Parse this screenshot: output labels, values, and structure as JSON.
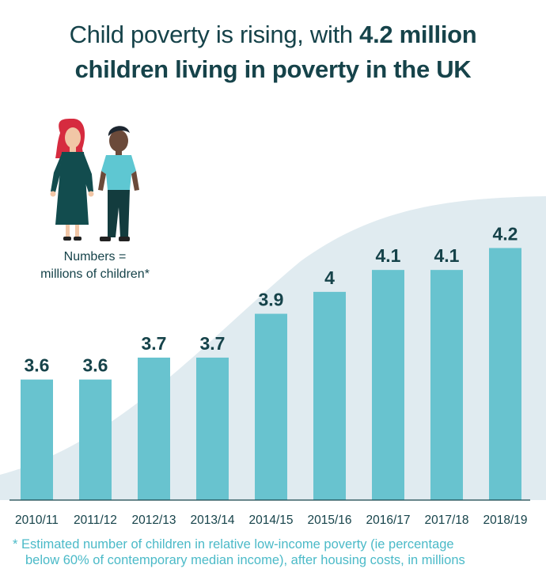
{
  "header": {
    "title_line1_prefix": "Child poverty is rising, with ",
    "title_line1_bold": "4.2 million",
    "title_line2_bold": "children living in poverty in the UK"
  },
  "legend": {
    "line1": "Numbers =",
    "line2": "millions of children*"
  },
  "footnote": {
    "line1": "* Estimated number of children in relative low-income poverty (ie percentage",
    "line2": "below 60% of contemporary median income), after housing costs, in millions"
  },
  "colors": {
    "bar": "#68c3cf",
    "background_area": "#e0ebf0",
    "text_dark": "#16434a",
    "footnote": "#4bbac8",
    "axis": "#16434a"
  },
  "chart_data": {
    "type": "bar",
    "title": "Child poverty is rising, with 4.2 million children living in poverty in the UK",
    "xlabel": "",
    "ylabel": "Millions of children",
    "categories": [
      "2010/11",
      "2011/12",
      "2012/13",
      "2013/14",
      "2014/15",
      "2015/16",
      "2016/17",
      "2017/18",
      "2018/19"
    ],
    "values": [
      3.6,
      3.6,
      3.7,
      3.7,
      3.9,
      4,
      4.1,
      4.1,
      4.2
    ],
    "value_labels": [
      "3.6",
      "3.6",
      "3.7",
      "3.7",
      "3.9",
      "4",
      "4.1",
      "4.1",
      "4.2"
    ],
    "ylim": [
      3.0,
      4.2
    ],
    "grid": false,
    "legend": "none"
  }
}
